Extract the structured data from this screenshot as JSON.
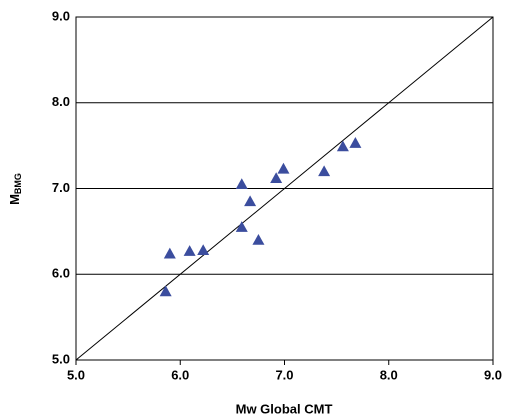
{
  "chart_data": {
    "type": "scatter",
    "x_label": "Mw Global CMT",
    "y_label": "M",
    "y_label_subscript": "BMG",
    "color": "#3b4d9e",
    "x": [
      5.86,
      5.9,
      6.09,
      6.22,
      6.59,
      6.67,
      6.59,
      6.75,
      6.92,
      6.99,
      7.38,
      7.56,
      7.68
    ],
    "y": [
      5.8,
      6.24,
      6.27,
      6.28,
      7.05,
      6.85,
      6.55,
      6.4,
      7.12,
      7.23,
      7.2,
      7.49,
      7.53
    ],
    "xlim": [
      5,
      9
    ],
    "ylim": [
      5,
      9
    ],
    "xticks": [
      {
        "value": 5,
        "label": "5.0"
      },
      {
        "value": 6,
        "label": "6.0"
      },
      {
        "value": 7,
        "label": "7.0"
      },
      {
        "value": 8,
        "label": "8.0"
      },
      {
        "value": 9,
        "label": "9.0"
      }
    ],
    "yticks": [
      {
        "value": 5,
        "label": "5.0"
      },
      {
        "value": 6,
        "label": "6.0"
      },
      {
        "value": 7,
        "label": "7.0"
      },
      {
        "value": 8,
        "label": "8.0"
      },
      {
        "value": 9,
        "label": "9.0"
      }
    ],
    "grid": true
  }
}
